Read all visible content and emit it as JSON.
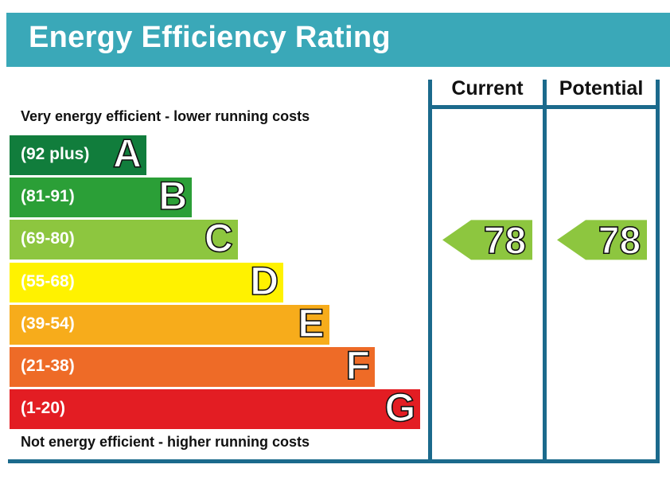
{
  "header": {
    "title": "Energy Efficiency Rating"
  },
  "captions": {
    "top": "Very energy efficient - lower running costs",
    "bottom": "Not energy efficient - higher running costs"
  },
  "columns": {
    "current": "Current",
    "potential": "Potential"
  },
  "chart_data": {
    "type": "bar",
    "title": "Energy Efficiency Rating",
    "bands": [
      {
        "letter": "A",
        "range": "(92 plus)",
        "min": 92,
        "max": 100,
        "color": "#117d3c"
      },
      {
        "letter": "B",
        "range": "(81-91)",
        "min": 81,
        "max": 91,
        "color": "#2b9f37"
      },
      {
        "letter": "C",
        "range": "(69-80)",
        "min": 69,
        "max": 80,
        "color": "#8dc63f"
      },
      {
        "letter": "D",
        "range": "(55-68)",
        "min": 55,
        "max": 68,
        "color": "#fff200"
      },
      {
        "letter": "E",
        "range": "(39-54)",
        "min": 39,
        "max": 54,
        "color": "#f7ac1b"
      },
      {
        "letter": "F",
        "range": "(21-38)",
        "min": 21,
        "max": 38,
        "color": "#ee6b27"
      },
      {
        "letter": "G",
        "range": "(1-20)",
        "min": 1,
        "max": 20,
        "color": "#e31d23"
      }
    ],
    "current": {
      "value": 78,
      "band": "C",
      "color": "#8dc63f"
    },
    "potential": {
      "value": 78,
      "band": "C",
      "color": "#8dc63f"
    }
  },
  "colors": {
    "header": "#3aa8b8",
    "frame": "#1b6a8c"
  }
}
